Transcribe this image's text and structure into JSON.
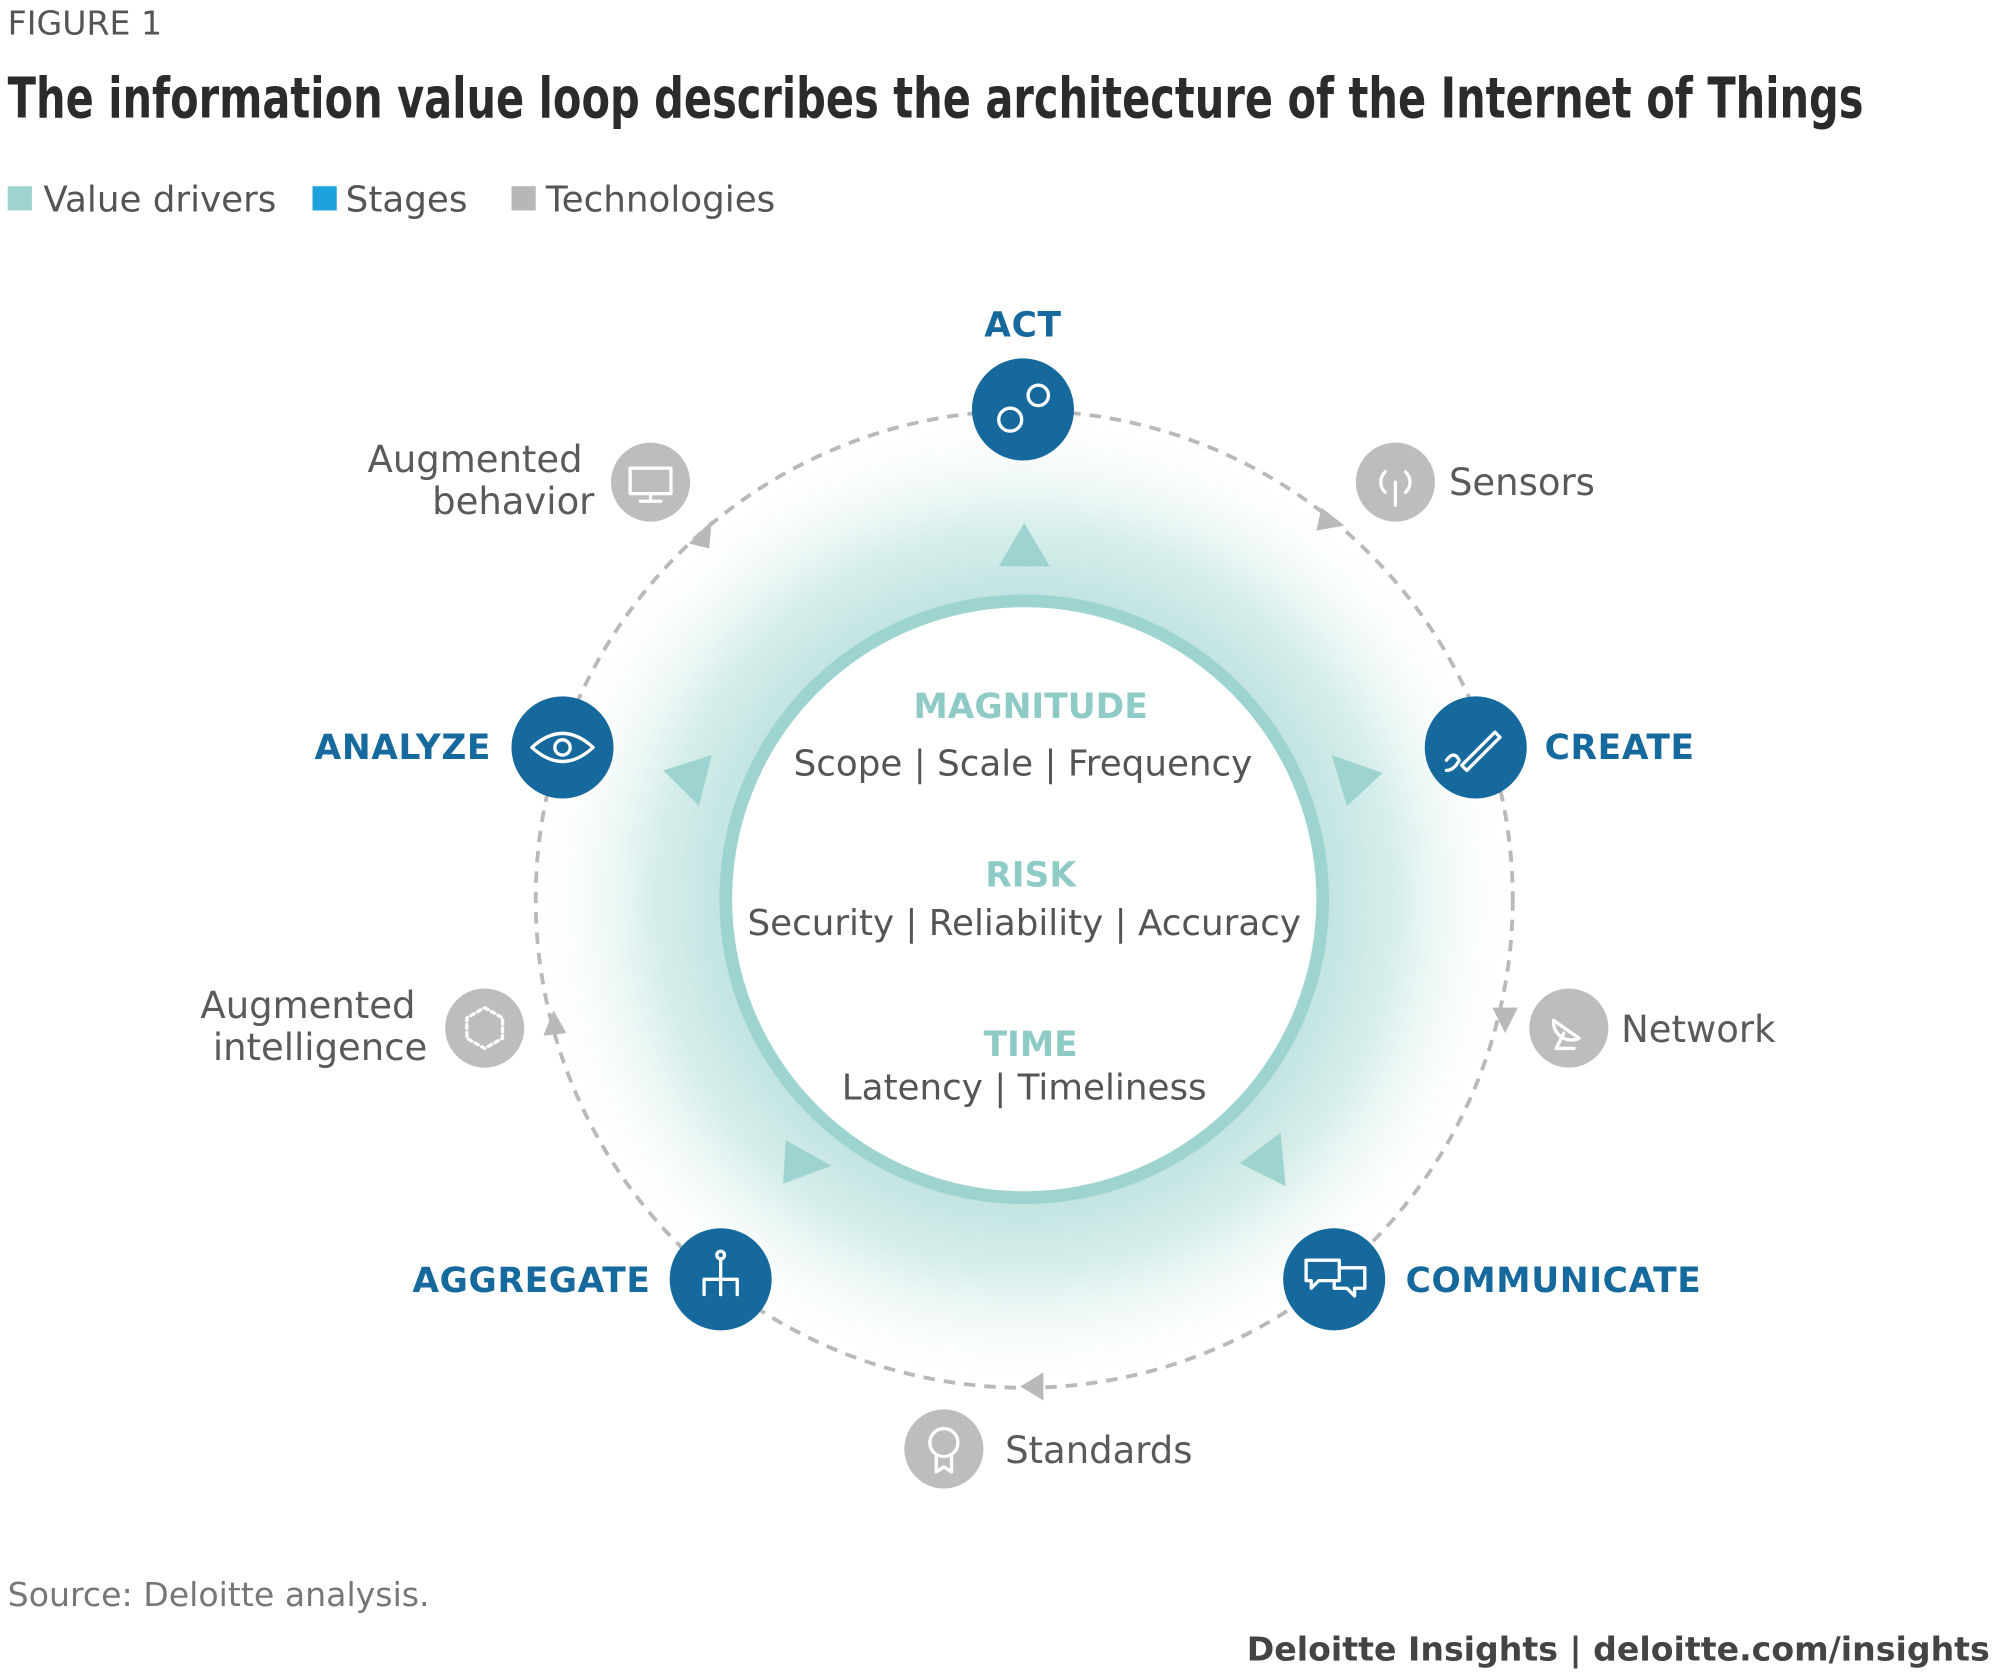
{
  "header": {
    "label": "FIGURE 1",
    "title": "The information value loop describes the architecture of the Internet of Things"
  },
  "legend": [
    {
      "label": "Value drivers",
      "color": "#9ed4d0"
    },
    {
      "label": "Stages",
      "color": "#1ea2dc"
    },
    {
      "label": "Technologies",
      "color": "#b7b7b7"
    }
  ],
  "stages": [
    "ACT",
    "CREATE",
    "COMMUNICATE",
    "AGGREGATE",
    "ANALYZE"
  ],
  "technologies": [
    {
      "lines": [
        "Sensors"
      ]
    },
    {
      "lines": [
        "Network"
      ]
    },
    {
      "lines": [
        "Standards"
      ]
    },
    {
      "lines": [
        "Augmented",
        "intelligence"
      ]
    },
    {
      "lines": [
        "Augmented",
        "behavior"
      ]
    }
  ],
  "value_drivers": [
    {
      "name": "MAGNITUDE",
      "items": "Scope | Scale | Frequency"
    },
    {
      "name": "RISK",
      "items": "Security | Reliability | Accuracy"
    },
    {
      "name": "TIME",
      "items": "Latency | Timeliness"
    }
  ],
  "footer": {
    "source": "Source: Deloitte analysis.",
    "credit": "Deloitte Insights | deloitte.com/insights"
  }
}
